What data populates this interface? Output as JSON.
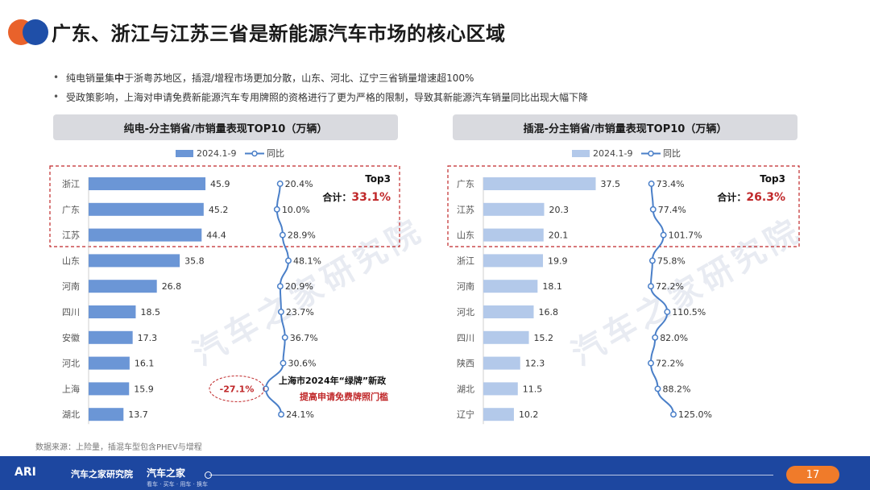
{
  "header": {
    "title": "广东、浙江与江苏三省是新能源汽车市场的核心区域"
  },
  "bullets": [
    {
      "pre": "纯电销量集",
      "bold": "中",
      "post": "于浙粤苏地区，插混/增程市场更加分散，山东、河北、辽宁三省销量增速超100%"
    },
    {
      "pre": "受政策影响，上海对申请免费新能源汽车专用牌照的资格进行了更为严格的限制，导致其新能源汽车销量同比出现大幅下降",
      "bold": "",
      "post": ""
    }
  ],
  "watermark": "汽车之家研究院",
  "chart_data": [
    {
      "type": "bar",
      "title": "纯电-分主销省/市销量表现TOP10（万辆）",
      "legend": {
        "bar": "2024.1-9",
        "line": "同比"
      },
      "categories": [
        "浙江",
        "广东",
        "江苏",
        "山东",
        "河南",
        "四川",
        "安徽",
        "河北",
        "上海",
        "湖北"
      ],
      "series": [
        {
          "name": "2024.1-9",
          "type": "bar",
          "values": [
            45.9,
            45.2,
            44.4,
            35.8,
            26.8,
            18.5,
            17.3,
            16.1,
            15.9,
            13.7
          ]
        },
        {
          "name": "同比",
          "type": "line",
          "values": [
            20.4,
            10.0,
            28.9,
            48.1,
            20.9,
            23.7,
            36.7,
            30.6,
            -27.1,
            24.1
          ],
          "labels": [
            "20.4%",
            "10.0%",
            "28.9%",
            "48.1%",
            "20.9%",
            "23.7%",
            "36.7%",
            "30.6%",
            "-27.1%",
            "24.1%"
          ]
        }
      ],
      "top3": {
        "label": "Top3",
        "sum_label": "合计：",
        "sum_value": "33.1%"
      },
      "annotation": {
        "line1": "上海市2024年“绿牌”新政",
        "line2": "提高申请免费牌照门槛"
      },
      "bar_color": "#6b96d6",
      "line_color": "#4a7fc8",
      "highlight_color": "#c0282a"
    },
    {
      "type": "bar",
      "title": "插混-分主销省/市销量表现TOP10（万辆）",
      "legend": {
        "bar": "2024.1-9",
        "line": "同比"
      },
      "categories": [
        "广东",
        "江苏",
        "山东",
        "浙江",
        "河南",
        "河北",
        "四川",
        "陕西",
        "湖北",
        "辽宁"
      ],
      "series": [
        {
          "name": "2024.1-9",
          "type": "bar",
          "values": [
            37.5,
            20.3,
            20.1,
            19.9,
            18.1,
            16.8,
            15.2,
            12.3,
            11.5,
            10.2
          ]
        },
        {
          "name": "同比",
          "type": "line",
          "values": [
            73.4,
            77.4,
            101.7,
            75.8,
            72.2,
            110.5,
            82.0,
            72.2,
            88.2,
            125.0
          ],
          "labels": [
            "73.4%",
            "77.4%",
            "101.7%",
            "75.8%",
            "72.2%",
            "110.5%",
            "82.0%",
            "72.2%",
            "88.2%",
            "125.0%"
          ]
        }
      ],
      "top3": {
        "label": "Top3",
        "sum_label": "合计：",
        "sum_value": "26.3%"
      },
      "bar_color": "#b3c9ea",
      "line_color": "#4a7fc8",
      "highlight_color": "#c0282a"
    }
  ],
  "footer": {
    "source": "数据来源：上险量，插混车型包含PHEV与增程",
    "brand_left": "汽车之家研究院",
    "brand_right": "汽车之家",
    "tagline": "看车 · 买车 · 用车 · 换车",
    "page_number": "17",
    "corner_mark": "ARI"
  }
}
